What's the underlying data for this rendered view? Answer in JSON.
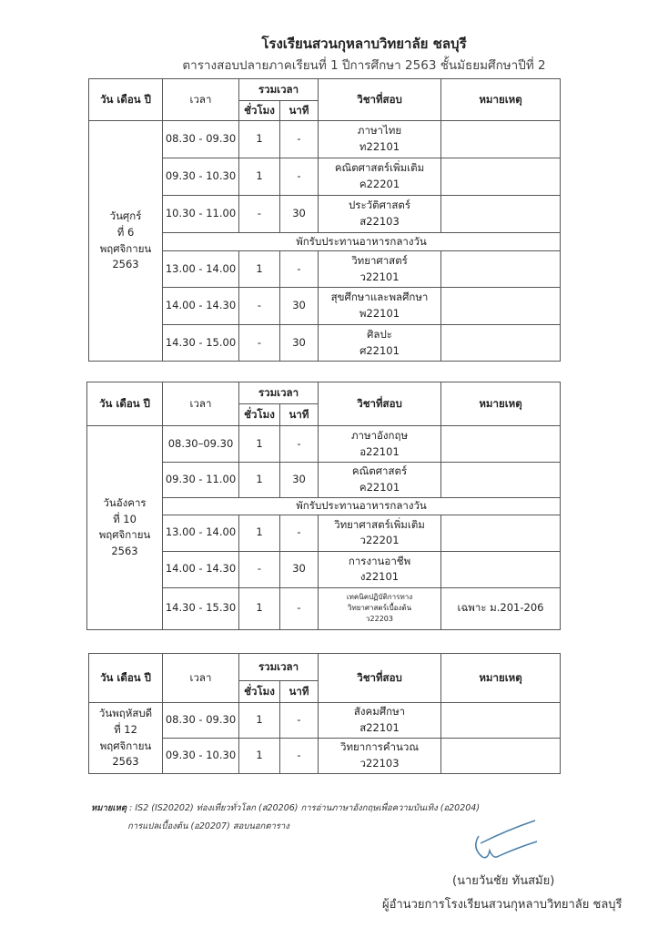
{
  "header": {
    "school": "โรงเรียนสวนกุหลาบวิทยาลัย  ชลบุรี",
    "subtitle": "ตารางสอบปลายภาคเรียนที่ 1 ปีการศึกษา 2563   ชั้นมัธยมศึกษาปีที่ 2"
  },
  "columns": {
    "date": "วัน เดือน ปี",
    "time": "เวลา",
    "total": "รวมเวลา",
    "hours": "ชั่วโมง",
    "minutes": "นาที",
    "subject": "วิชาที่สอบ",
    "remark": "หมายเหตุ"
  },
  "tables": [
    {
      "date": [
        "วันศุกร์",
        "ที่ 6",
        "พฤศจิกายน",
        "2563"
      ],
      "rows": [
        {
          "time": "08.30 - 09.30",
          "h": "1",
          "m": "-",
          "subject": [
            "ภาษาไทย",
            "ท22101"
          ],
          "remark": ""
        },
        {
          "time": "09.30 - 10.30",
          "h": "1",
          "m": "-",
          "subject": [
            "คณิตศาสตร์เพิ่มเติม",
            "ค22201"
          ],
          "remark": ""
        },
        {
          "time": "10.30 - 11.00",
          "h": "-",
          "m": "30",
          "subject": [
            "ประวัติศาสตร์",
            "ส22103"
          ],
          "remark": ""
        },
        {
          "break": "พักรับประทานอาหารกลางวัน"
        },
        {
          "time": "13.00 - 14.00",
          "h": "1",
          "m": "-",
          "subject": [
            "วิทยาศาสตร์",
            "ว22101"
          ],
          "remark": ""
        },
        {
          "time": "14.00 - 14.30",
          "h": "-",
          "m": "30",
          "subject": [
            "สุขศึกษาและพลศึกษา",
            "พ22101"
          ],
          "remark": ""
        },
        {
          "time": "14.30 - 15.00",
          "h": "-",
          "m": "30",
          "subject": [
            "ศิลปะ",
            "ศ22101"
          ],
          "remark": ""
        }
      ]
    },
    {
      "date": [
        "วันอังคาร",
        "ที่ 10",
        "พฤศจิกายน",
        "2563"
      ],
      "rows": [
        {
          "time": "08.30–09.30",
          "h": "1",
          "m": "-",
          "subject": [
            "ภาษาอังกฤษ",
            "อ22101"
          ],
          "remark": ""
        },
        {
          "time": "09.30 - 11.00",
          "h": "1",
          "m": "30",
          "subject": [
            "คณิตศาสตร์",
            "ค22101"
          ],
          "remark": ""
        },
        {
          "break": "พักรับประทานอาหารกลางวัน"
        },
        {
          "time": "13.00 - 14.00",
          "h": "1",
          "m": "-",
          "subject": [
            "วิทยาศาสตร์เพิ่มเติม",
            "ว22201"
          ],
          "remark": ""
        },
        {
          "time": "14.00 - 14.30",
          "h": "-",
          "m": "30",
          "subject": [
            "การงานอาชีพ",
            "ง22101"
          ],
          "remark": ""
        },
        {
          "time": "14.30 - 15.30",
          "h": "1",
          "m": "-",
          "subject": [
            "เทคนิคปฏิบัติการทาง",
            "วิทยาศาสตร์เบื้องต้น",
            "ว22203"
          ],
          "small": true,
          "remark": "เฉพาะ ม.201-206"
        }
      ]
    },
    {
      "date": [
        "วันพฤหัสบดี",
        "ที่ 12",
        "พฤศจิกายน",
        "2563"
      ],
      "rows": [
        {
          "time": "08.30 - 09.30",
          "h": "1",
          "m": "-",
          "subject": [
            "สังคมศึกษา",
            "ส22101"
          ],
          "remark": ""
        },
        {
          "time": "09.30 - 10.30",
          "h": "1",
          "m": "-",
          "subject": [
            "วิทยาการคำนวณ",
            "ว22103"
          ],
          "remark": ""
        }
      ]
    }
  ],
  "note": {
    "label": "หมายเหตุ",
    "line1": ": IS2 (IS20202)  ท่องเที่ยวทั่วโลก (ส20206)  การอ่านภาษาอังกฤษเพื่อความบันเทิง (อ20204)",
    "line2": "การแปลเบื้องต้น (อ20207) สอบนอกตาราง"
  },
  "signature": {
    "name": "(นายวันชัย    ทันสมัย)",
    "title": "ผู้อำนวยการโรงเรียนสวนกุหลาบวิทยาลัย  ชลบุรี",
    "ink_color": "#4a7fa8"
  }
}
